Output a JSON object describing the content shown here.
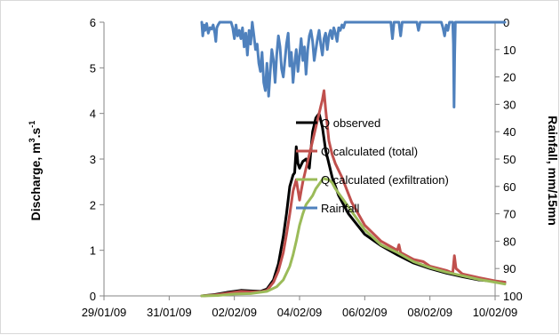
{
  "chart_data": {
    "type": "line",
    "xlabel": "",
    "ylabel_left_text": "Discharge, m",
    "ylabel_left_sup": "3",
    "ylabel_left_dot": ".s",
    "ylabel_left_sup2": "-1",
    "ylabel_right": "Rainfall, mm/15mn",
    "x_ticks": [
      "29/01/09",
      "31/01/09",
      "02/02/09",
      "04/02/09",
      "06/02/09",
      "08/02/09",
      "10/02/09"
    ],
    "x_tick_days": [
      0,
      2,
      4,
      6,
      8,
      10,
      12
    ],
    "ylim_left": [
      0,
      6
    ],
    "y_ticks_left": [
      "0",
      "1",
      "2",
      "3",
      "4",
      "5",
      "6"
    ],
    "ylim_right": [
      0,
      100
    ],
    "y_ticks_right": [
      "0",
      "10",
      "20",
      "30",
      "40",
      "50",
      "60",
      "70",
      "80",
      "90",
      "100"
    ],
    "right_axis_inverted": true,
    "legend_position": "center-right",
    "series": [
      {
        "name": "Q observed",
        "color": "#000000",
        "axis": "left",
        "points": [
          [
            3.0,
            0.0
          ],
          [
            3.4,
            0.03
          ],
          [
            3.8,
            0.08
          ],
          [
            4.2,
            0.12
          ],
          [
            4.5,
            0.11
          ],
          [
            4.8,
            0.1
          ],
          [
            5.0,
            0.15
          ],
          [
            5.2,
            0.35
          ],
          [
            5.35,
            0.7
          ],
          [
            5.5,
            1.3
          ],
          [
            5.6,
            1.8
          ],
          [
            5.7,
            2.4
          ],
          [
            5.8,
            2.65
          ],
          [
            5.85,
            2.7
          ],
          [
            5.9,
            3.27
          ],
          [
            5.95,
            2.9
          ],
          [
            6.0,
            2.8
          ],
          [
            6.1,
            2.95
          ],
          [
            6.2,
            3.0
          ],
          [
            6.3,
            2.8
          ],
          [
            6.35,
            3.2
          ],
          [
            6.4,
            3.6
          ],
          [
            6.5,
            3.9
          ],
          [
            6.6,
            4.0
          ],
          [
            6.7,
            3.7
          ],
          [
            6.8,
            3.2
          ],
          [
            7.0,
            2.6
          ],
          [
            7.2,
            2.2
          ],
          [
            7.5,
            1.8
          ],
          [
            8.0,
            1.35
          ],
          [
            8.5,
            1.1
          ],
          [
            9.0,
            0.9
          ],
          [
            9.5,
            0.72
          ],
          [
            10.0,
            0.6
          ],
          [
            10.5,
            0.5
          ],
          [
            11.0,
            0.42
          ],
          [
            11.5,
            0.35
          ],
          [
            12.0,
            0.32
          ],
          [
            12.3,
            0.3
          ]
        ]
      },
      {
        "name": "Q calculated (total)",
        "color": "#c0504d",
        "axis": "left",
        "points": [
          [
            3.0,
            0.0
          ],
          [
            3.4,
            0.02
          ],
          [
            3.8,
            0.06
          ],
          [
            4.2,
            0.1
          ],
          [
            4.5,
            0.09
          ],
          [
            4.8,
            0.09
          ],
          [
            5.0,
            0.12
          ],
          [
            5.2,
            0.3
          ],
          [
            5.35,
            0.55
          ],
          [
            5.5,
            0.95
          ],
          [
            5.6,
            1.35
          ],
          [
            5.7,
            1.8
          ],
          [
            5.8,
            2.3
          ],
          [
            5.9,
            2.55
          ],
          [
            6.0,
            2.1
          ],
          [
            6.05,
            2.3
          ],
          [
            6.1,
            2.5
          ],
          [
            6.2,
            2.8
          ],
          [
            6.3,
            3.1
          ],
          [
            6.4,
            3.4
          ],
          [
            6.5,
            3.7
          ],
          [
            6.6,
            4.0
          ],
          [
            6.65,
            4.15
          ],
          [
            6.7,
            4.3
          ],
          [
            6.75,
            4.5
          ],
          [
            6.8,
            4.1
          ],
          [
            6.9,
            3.4
          ],
          [
            7.0,
            3.1
          ],
          [
            7.1,
            2.9
          ],
          [
            7.3,
            2.6
          ],
          [
            7.6,
            2.05
          ],
          [
            8.0,
            1.55
          ],
          [
            8.5,
            1.2
          ],
          [
            9.0,
            1.0
          ],
          [
            9.05,
            1.12
          ],
          [
            9.1,
            0.95
          ],
          [
            9.5,
            0.8
          ],
          [
            9.8,
            0.75
          ],
          [
            10.0,
            0.65
          ],
          [
            10.5,
            0.56
          ],
          [
            10.7,
            0.5
          ],
          [
            10.75,
            0.88
          ],
          [
            10.8,
            0.6
          ],
          [
            11.0,
            0.48
          ],
          [
            11.5,
            0.4
          ],
          [
            12.0,
            0.33
          ],
          [
            12.3,
            0.3
          ]
        ]
      },
      {
        "name": "Q calculated (exfiltration)",
        "color": "#9bbb59",
        "axis": "left",
        "points": [
          [
            3.0,
            0.0
          ],
          [
            3.5,
            0.01
          ],
          [
            4.0,
            0.04
          ],
          [
            4.5,
            0.05
          ],
          [
            5.0,
            0.1
          ],
          [
            5.3,
            0.2
          ],
          [
            5.5,
            0.35
          ],
          [
            5.7,
            0.65
          ],
          [
            5.8,
            0.9
          ],
          [
            5.9,
            1.2
          ],
          [
            6.0,
            1.55
          ],
          [
            6.1,
            1.8
          ],
          [
            6.2,
            2.0
          ],
          [
            6.3,
            2.1
          ],
          [
            6.4,
            2.2
          ],
          [
            6.5,
            2.35
          ],
          [
            6.6,
            2.45
          ],
          [
            6.7,
            2.55
          ],
          [
            6.75,
            2.58
          ],
          [
            6.8,
            2.56
          ],
          [
            6.9,
            2.55
          ],
          [
            7.0,
            2.48
          ],
          [
            7.1,
            2.35
          ],
          [
            7.3,
            2.15
          ],
          [
            7.6,
            1.85
          ],
          [
            8.0,
            1.45
          ],
          [
            8.5,
            1.12
          ],
          [
            9.0,
            0.95
          ],
          [
            9.5,
            0.75
          ],
          [
            10.0,
            0.62
          ],
          [
            10.5,
            0.52
          ],
          [
            11.0,
            0.44
          ],
          [
            11.5,
            0.36
          ],
          [
            12.0,
            0.3
          ],
          [
            12.3,
            0.26
          ]
        ]
      },
      {
        "name": "Rainfall",
        "color": "#4f81bd",
        "axis": "right",
        "points": [
          [
            3.0,
            0.0
          ],
          [
            3.03,
            5.0
          ],
          [
            3.07,
            1.0
          ],
          [
            3.1,
            3.0
          ],
          [
            3.15,
            0.5
          ],
          [
            3.2,
            4.0
          ],
          [
            3.25,
            2.0
          ],
          [
            3.3,
            2.5
          ],
          [
            3.35,
            1.0
          ],
          [
            3.4,
            4.0
          ],
          [
            3.43,
            7.0
          ],
          [
            3.46,
            2.0
          ],
          [
            3.5,
            1.0
          ],
          [
            3.55,
            0.0
          ],
          [
            3.9,
            0.0
          ],
          [
            3.95,
            2.0
          ],
          [
            4.0,
            6.0
          ],
          [
            4.05,
            1.0
          ],
          [
            4.1,
            5.0
          ],
          [
            4.15,
            3.0
          ],
          [
            4.2,
            6.0
          ],
          [
            4.25,
            2.0
          ],
          [
            4.3,
            9.0
          ],
          [
            4.35,
            4.0
          ],
          [
            4.4,
            12.0
          ],
          [
            4.45,
            3.0
          ],
          [
            4.5,
            8.0
          ],
          [
            4.55,
            0.0
          ],
          [
            4.6,
            5.0
          ],
          [
            4.65,
            10.0
          ],
          [
            4.7,
            8.0
          ],
          [
            4.75,
            15.0
          ],
          [
            4.8,
            18.0
          ],
          [
            4.85,
            11.0
          ],
          [
            4.9,
            22.0
          ],
          [
            4.95,
            25.0
          ],
          [
            5.0,
            15.0
          ],
          [
            5.05,
            27.0
          ],
          [
            5.1,
            18.0
          ],
          [
            5.15,
            10.0
          ],
          [
            5.2,
            14.0
          ],
          [
            5.25,
            22.0
          ],
          [
            5.3,
            12.0
          ],
          [
            5.35,
            5.0
          ],
          [
            5.4,
            9.0
          ],
          [
            5.45,
            17.0
          ],
          [
            5.5,
            20.0
          ],
          [
            5.55,
            14.0
          ],
          [
            5.6,
            8.0
          ],
          [
            5.65,
            4.0
          ],
          [
            5.7,
            16.0
          ],
          [
            5.75,
            11.0
          ],
          [
            5.8,
            22.0
          ],
          [
            5.85,
            15.0
          ],
          [
            5.9,
            10.0
          ],
          [
            5.95,
            18.0
          ],
          [
            6.0,
            12.0
          ],
          [
            6.05,
            6.0
          ],
          [
            6.1,
            14.0
          ],
          [
            6.15,
            9.0
          ],
          [
            6.2,
            19.0
          ],
          [
            6.25,
            10.0
          ],
          [
            6.3,
            5.0
          ],
          [
            6.35,
            3.0
          ],
          [
            6.4,
            7.0
          ],
          [
            6.45,
            14.0
          ],
          [
            6.5,
            10.0
          ],
          [
            6.55,
            6.0
          ],
          [
            6.6,
            3.0
          ],
          [
            6.65,
            8.0
          ],
          [
            6.7,
            12.0
          ],
          [
            6.75,
            6.0
          ],
          [
            6.8,
            4.0
          ],
          [
            6.85,
            10.0
          ],
          [
            6.9,
            5.0
          ],
          [
            6.95,
            3.0
          ],
          [
            7.0,
            6.0
          ],
          [
            7.05,
            2.0
          ],
          [
            7.1,
            4.0
          ],
          [
            7.15,
            7.0
          ],
          [
            7.2,
            2.0
          ],
          [
            7.25,
            3.0
          ],
          [
            7.3,
            1.0
          ],
          [
            7.35,
            2.0
          ],
          [
            7.4,
            0.0
          ],
          [
            8.8,
            0.0
          ],
          [
            8.85,
            6.0
          ],
          [
            8.9,
            0.0
          ],
          [
            9.05,
            0.0
          ],
          [
            9.1,
            5.0
          ],
          [
            9.15,
            0.0
          ],
          [
            9.6,
            0.0
          ],
          [
            9.65,
            3.0
          ],
          [
            9.7,
            0.0
          ],
          [
            10.35,
            0.0
          ],
          [
            10.4,
            2.0
          ],
          [
            10.45,
            5.0
          ],
          [
            10.5,
            1.0
          ],
          [
            10.55,
            3.0
          ],
          [
            10.6,
            0.0
          ],
          [
            10.7,
            0.0
          ],
          [
            10.72,
            8.0
          ],
          [
            10.74,
            31.0
          ],
          [
            10.76,
            12.0
          ],
          [
            10.78,
            0.0
          ],
          [
            12.3,
            0.0
          ]
        ]
      }
    ]
  }
}
